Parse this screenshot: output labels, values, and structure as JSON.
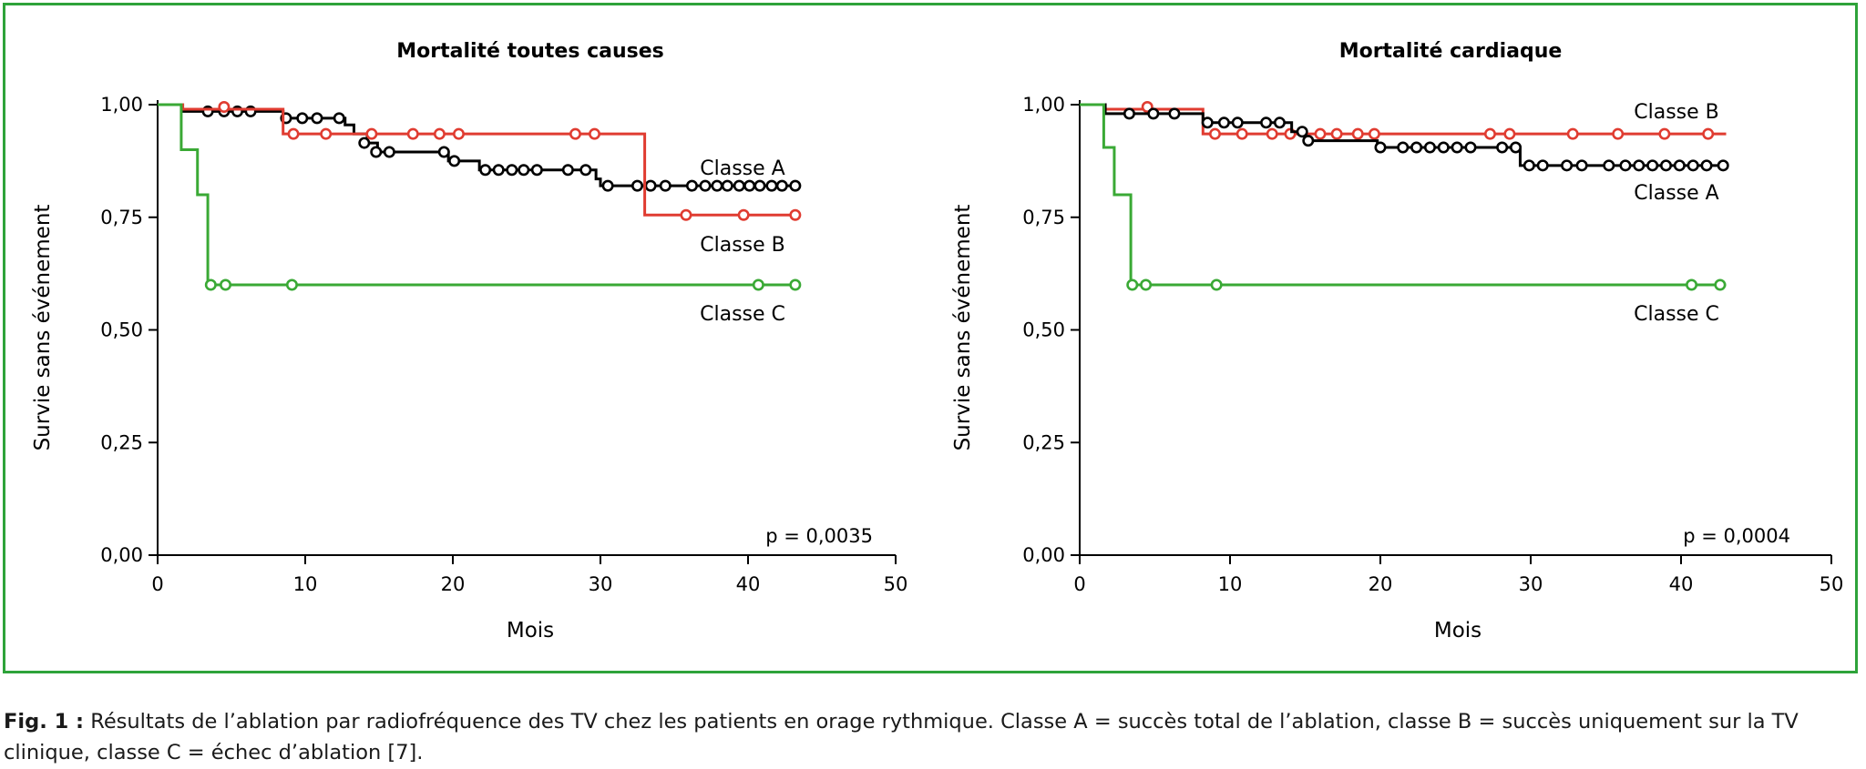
{
  "caption": {
    "label": "Fig. 1 :",
    "text": "Résultats de l’ablation par radiofréquence des TV chez les patients en orage rythmique. Classe A = succès total de l’ablation, classe B = succès uniquement sur la TV clinique, classe C = échec d’ablation [7]."
  },
  "colors": {
    "frame": "#2ea33a",
    "classA": "#000000",
    "classB": "#e03c31",
    "classC": "#3aa935",
    "axis": "#000000"
  },
  "chart_data": [
    {
      "type": "line",
      "subtype": "kaplan-meier",
      "title": "Mortalité toutes causes",
      "xlabel": "Mois",
      "ylabel": "Survie sans événement",
      "xlim": [
        0,
        50
      ],
      "ylim": [
        0,
        1
      ],
      "xticks": [
        "0",
        "10",
        "20",
        "30",
        "40",
        "50"
      ],
      "yticks": [
        "0,00",
        "0,25",
        "0,50",
        "0,75",
        "1,00"
      ],
      "annotation": "p = 0,0035",
      "grid": false,
      "series": [
        {
          "name": "Classe A",
          "color": "#000000",
          "steps": [
            [
              0,
              1.0
            ],
            [
              1.7,
              0.985
            ],
            [
              8.5,
              0.97
            ],
            [
              12.7,
              0.955
            ],
            [
              13.3,
              0.935
            ],
            [
              14.2,
              0.915
            ],
            [
              14.9,
              0.895
            ],
            [
              19.7,
              0.875
            ],
            [
              21.8,
              0.855
            ],
            [
              29.7,
              0.835
            ],
            [
              30.0,
              0.82
            ]
          ],
          "end": 43.3,
          "censored": [
            [
              3.4,
              0.985
            ],
            [
              4.5,
              0.985
            ],
            [
              5.4,
              0.985
            ],
            [
              6.3,
              0.985
            ],
            [
              8.7,
              0.97
            ],
            [
              9.8,
              0.97
            ],
            [
              10.8,
              0.97
            ],
            [
              12.3,
              0.97
            ],
            [
              14.0,
              0.915
            ],
            [
              14.8,
              0.895
            ],
            [
              15.7,
              0.895
            ],
            [
              19.4,
              0.895
            ],
            [
              20.1,
              0.875
            ],
            [
              22.2,
              0.855
            ],
            [
              23.1,
              0.855
            ],
            [
              24.0,
              0.855
            ],
            [
              24.8,
              0.855
            ],
            [
              25.7,
              0.855
            ],
            [
              27.8,
              0.855
            ],
            [
              29.0,
              0.855
            ],
            [
              30.5,
              0.82
            ],
            [
              32.5,
              0.82
            ],
            [
              33.4,
              0.82
            ],
            [
              34.4,
              0.82
            ],
            [
              36.2,
              0.82
            ],
            [
              37.1,
              0.82
            ],
            [
              37.9,
              0.82
            ],
            [
              38.6,
              0.82
            ],
            [
              39.4,
              0.82
            ],
            [
              40.1,
              0.82
            ],
            [
              40.8,
              0.82
            ],
            [
              41.6,
              0.82
            ],
            [
              42.3,
              0.82
            ],
            [
              43.2,
              0.82
            ]
          ]
        },
        {
          "name": "Classe B",
          "color": "#e03c31",
          "steps": [
            [
              0,
              1.0
            ],
            [
              1.7,
              0.99
            ],
            [
              8.5,
              0.935
            ],
            [
              33.0,
              0.755
            ]
          ],
          "end": 43.3,
          "censored": [
            [
              4.5,
              0.995
            ],
            [
              9.2,
              0.935
            ],
            [
              11.4,
              0.935
            ],
            [
              14.5,
              0.935
            ],
            [
              17.3,
              0.935
            ],
            [
              19.1,
              0.935
            ],
            [
              20.4,
              0.935
            ],
            [
              28.3,
              0.935
            ],
            [
              29.6,
              0.935
            ],
            [
              35.8,
              0.755
            ],
            [
              39.7,
              0.755
            ],
            [
              43.2,
              0.755
            ]
          ]
        },
        {
          "name": "Classe C",
          "color": "#3aa935",
          "steps": [
            [
              0,
              1.0
            ],
            [
              1.6,
              0.9
            ],
            [
              2.7,
              0.8
            ],
            [
              3.4,
              0.6
            ]
          ],
          "end": 43.3,
          "censored": [
            [
              3.6,
              0.6
            ],
            [
              4.6,
              0.6
            ],
            [
              9.1,
              0.6
            ],
            [
              40.7,
              0.6
            ],
            [
              43.2,
              0.6
            ]
          ]
        }
      ]
    },
    {
      "type": "line",
      "subtype": "kaplan-meier",
      "title": "Mortalité cardiaque",
      "xlabel": "Mois",
      "ylabel": "Survie sans événement",
      "xlim": [
        0,
        50
      ],
      "ylim": [
        0,
        1
      ],
      "xticks": [
        "0",
        "10",
        "20",
        "30",
        "40",
        "50"
      ],
      "yticks": [
        "0,00",
        "0,25",
        "0,50",
        "0,75",
        "1,00"
      ],
      "annotation": "p = 0,0004",
      "grid": false,
      "series": [
        {
          "name": "Classe B",
          "color": "#e03c31",
          "steps": [
            [
              0,
              1.0
            ],
            [
              1.7,
              0.99
            ],
            [
              8.2,
              0.935
            ]
          ],
          "end": 43.0,
          "censored": [
            [
              4.5,
              0.995
            ],
            [
              9.0,
              0.935
            ],
            [
              10.8,
              0.935
            ],
            [
              12.8,
              0.935
            ],
            [
              14.0,
              0.935
            ],
            [
              16.0,
              0.935
            ],
            [
              17.1,
              0.935
            ],
            [
              18.5,
              0.935
            ],
            [
              19.6,
              0.935
            ],
            [
              27.3,
              0.935
            ],
            [
              28.6,
              0.935
            ],
            [
              32.8,
              0.935
            ],
            [
              35.8,
              0.935
            ],
            [
              38.9,
              0.935
            ],
            [
              41.8,
              0.935
            ]
          ]
        },
        {
          "name": "Classe A",
          "color": "#000000",
          "steps": [
            [
              0,
              1.0
            ],
            [
              1.7,
              0.98
            ],
            [
              8.2,
              0.96
            ],
            [
              14.1,
              0.94
            ],
            [
              15.0,
              0.92
            ],
            [
              19.8,
              0.905
            ],
            [
              29.3,
              0.865
            ]
          ],
          "end": 43.0,
          "censored": [
            [
              3.3,
              0.98
            ],
            [
              4.9,
              0.98
            ],
            [
              6.3,
              0.98
            ],
            [
              8.5,
              0.96
            ],
            [
              9.6,
              0.96
            ],
            [
              10.5,
              0.96
            ],
            [
              12.4,
              0.96
            ],
            [
              13.3,
              0.96
            ],
            [
              14.8,
              0.94
            ],
            [
              15.2,
              0.92
            ],
            [
              20.0,
              0.905
            ],
            [
              21.5,
              0.905
            ],
            [
              22.4,
              0.905
            ],
            [
              23.3,
              0.905
            ],
            [
              24.2,
              0.905
            ],
            [
              25.1,
              0.905
            ],
            [
              26.0,
              0.905
            ],
            [
              28.1,
              0.905
            ],
            [
              29.0,
              0.905
            ],
            [
              29.9,
              0.865
            ],
            [
              30.8,
              0.865
            ],
            [
              32.4,
              0.865
            ],
            [
              33.4,
              0.865
            ],
            [
              35.2,
              0.865
            ],
            [
              36.3,
              0.865
            ],
            [
              37.2,
              0.865
            ],
            [
              38.1,
              0.865
            ],
            [
              39.0,
              0.865
            ],
            [
              39.9,
              0.865
            ],
            [
              40.8,
              0.865
            ],
            [
              41.7,
              0.865
            ],
            [
              42.8,
              0.865
            ]
          ]
        },
        {
          "name": "Classe C",
          "color": "#3aa935",
          "steps": [
            [
              0,
              1.0
            ],
            [
              1.6,
              0.905
            ],
            [
              2.3,
              0.8
            ],
            [
              3.4,
              0.6
            ]
          ],
          "end": 43.0,
          "censored": [
            [
              3.5,
              0.6
            ],
            [
              4.4,
              0.6
            ],
            [
              9.1,
              0.6
            ],
            [
              40.7,
              0.6
            ],
            [
              42.6,
              0.6
            ]
          ]
        }
      ]
    }
  ]
}
